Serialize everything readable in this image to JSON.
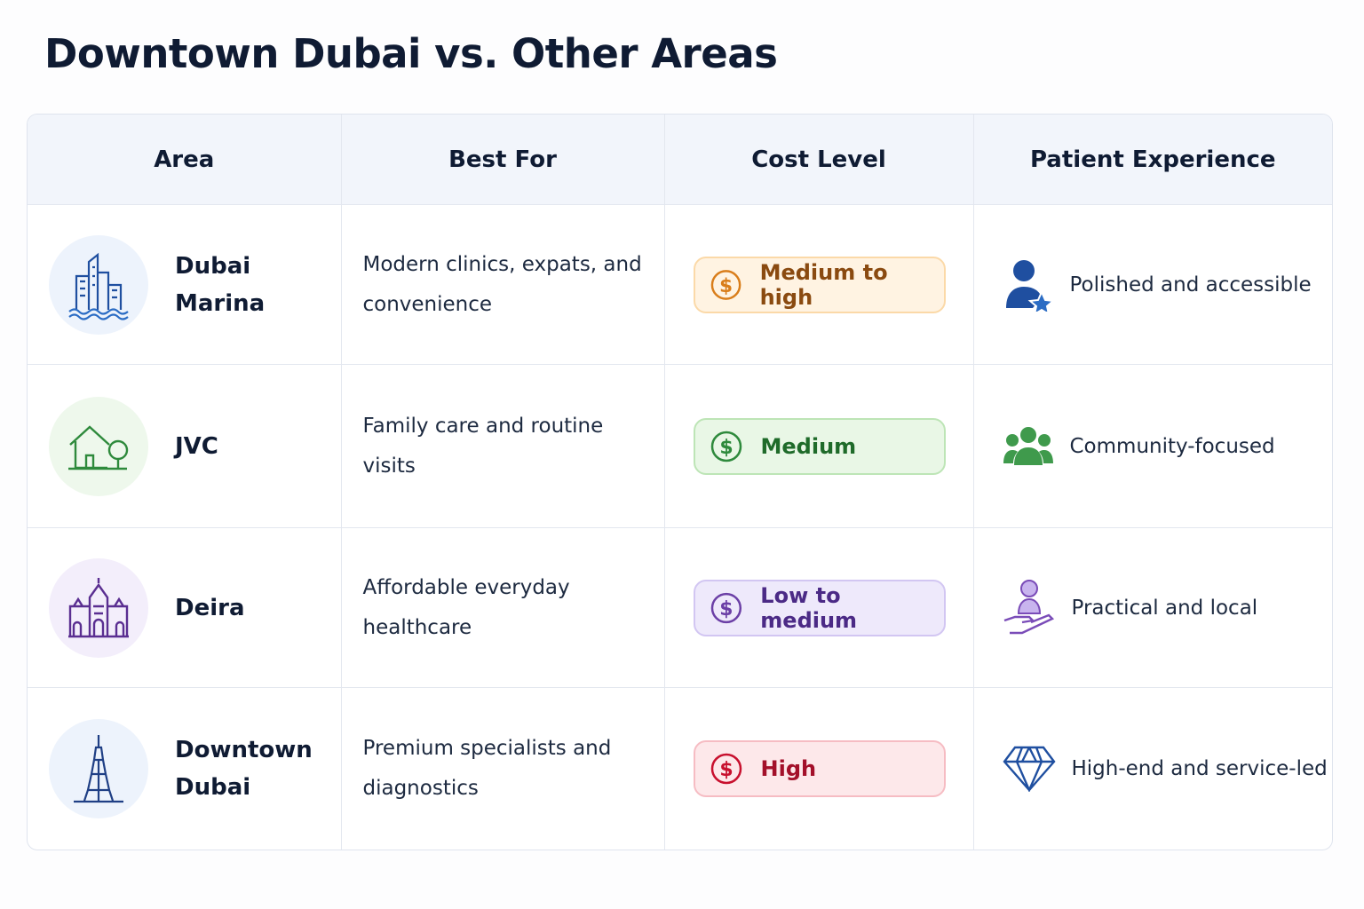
{
  "header": {
    "title": "Downtown Dubai vs. Other Areas"
  },
  "table": {
    "headers": [
      "Area",
      "Best For",
      "Cost Level",
      "Patient Experience"
    ],
    "rows": [
      [
        "Dubai Marina",
        "Modern clinics, expats, and convenience",
        "Medium to high",
        "Polished and accessible"
      ],
      [
        "JVC",
        "Family care and routine visits",
        "Medium",
        "Community-focused"
      ],
      [
        "Deira",
        "Affordable everyday healthcare",
        "Low to medium",
        "Practical and local"
      ],
      [
        "Downtown Dubai",
        "Premium specialists and diagnostics",
        "High",
        "High-end and service-led"
      ]
    ]
  }
}
